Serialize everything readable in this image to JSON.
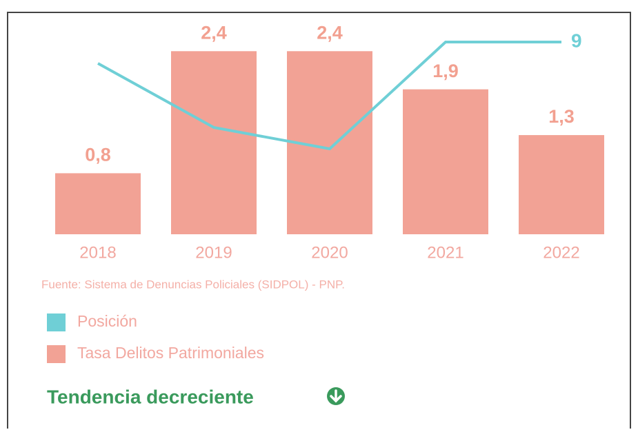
{
  "chart_data": {
    "type": "bar",
    "categories": [
      "2018",
      "2019",
      "2020",
      "2021",
      "2022"
    ],
    "series": [
      {
        "name": "Tasa Delitos Patrimoniales",
        "type": "bar",
        "color": "#f2a295",
        "values": [
          0.8,
          2.4,
          2.4,
          1.9,
          1.3
        ],
        "value_labels": [
          "0,8",
          "2,4",
          "2,4",
          "1,9",
          "1,3"
        ]
      },
      {
        "name": "Posición",
        "type": "line",
        "axis": "y2",
        "color": "#6fcfd6",
        "values": [
          8,
          5,
          4,
          9,
          9
        ],
        "value_labels": [
          null,
          null,
          null,
          null,
          "9"
        ]
      }
    ],
    "ylim": [
      0,
      2.8
    ],
    "y2lim": [
      0,
      10
    ],
    "source": "Fuente: Sistema de Denuncias Policiales (SIDPOL) - PNP.",
    "trend": "Tendencia decreciente"
  }
}
